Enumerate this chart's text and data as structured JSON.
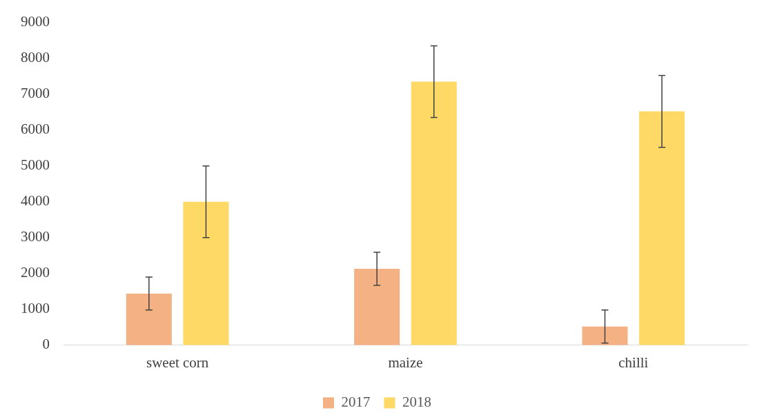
{
  "chart_data": {
    "type": "bar",
    "categories": [
      "sweet corn",
      "maize",
      "chilli"
    ],
    "series": [
      {
        "name": "2017",
        "color": "#f4b183",
        "values": [
          1440,
          2130,
          520
        ],
        "errors": [
          460,
          460,
          460
        ]
      },
      {
        "name": "2018",
        "color": "#ffd966",
        "values": [
          4000,
          7350,
          6520
        ],
        "errors": [
          1000,
          1000,
          1000
        ]
      }
    ],
    "ylim": [
      0,
      9000
    ],
    "yticks": [
      0,
      1000,
      2000,
      3000,
      4000,
      5000,
      6000,
      7000,
      8000,
      9000
    ],
    "grid": false,
    "legend": "bottom"
  }
}
